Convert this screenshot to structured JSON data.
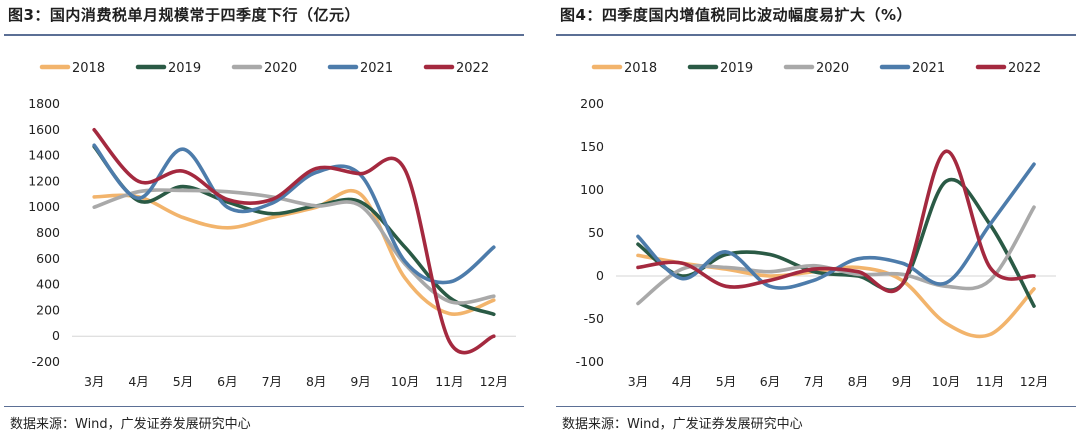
{
  "colors": {
    "2018": "#f2b46c",
    "2019": "#2a5a45",
    "2020": "#a9a9a9",
    "2021": "#4d7cab",
    "2022": "#a4293f",
    "rule": "#5b6f95"
  },
  "source_left": "数据来源：Wind，广发证券发展研究中心",
  "source_right": "数据来源：Wind，广发证券发展研究中心",
  "chart_data": [
    {
      "type": "line",
      "title": "图3：国内消费税单月规模常于四季度下行（亿元）",
      "categories": [
        "3月",
        "4月",
        "5月",
        "6月",
        "7月",
        "8月",
        "9月",
        "10月",
        "11月",
        "12月"
      ],
      "ylim": [
        -200,
        1800
      ],
      "yticks": [
        -200,
        0,
        200,
        400,
        600,
        800,
        1000,
        1200,
        1400,
        1600,
        1800
      ],
      "series": [
        {
          "name": "2018",
          "values": [
            1080,
            1080,
            920,
            840,
            920,
            1000,
            1100,
            450,
            175,
            280
          ]
        },
        {
          "name": "2019",
          "values": [
            1470,
            1050,
            1160,
            1040,
            950,
            1010,
            1040,
            690,
            300,
            170
          ]
        },
        {
          "name": "2020",
          "values": [
            1000,
            1120,
            1130,
            1120,
            1080,
            1010,
            1010,
            560,
            270,
            310
          ]
        },
        {
          "name": "2021",
          "values": [
            1480,
            1070,
            1450,
            1000,
            1030,
            1270,
            1250,
            580,
            420,
            690
          ]
        },
        {
          "name": "2022",
          "values": [
            1600,
            1200,
            1280,
            1060,
            1060,
            1300,
            1260,
            1290,
            -40,
            0
          ]
        }
      ]
    },
    {
      "type": "line",
      "title": "图4：四季度国内增值税同比波动幅度易扩大（%）",
      "categories": [
        "3月",
        "4月",
        "5月",
        "6月",
        "7月",
        "8月",
        "9月",
        "10月",
        "11月",
        "12月"
      ],
      "ylim": [
        -100,
        200
      ],
      "yticks": [
        -100,
        -50,
        0,
        50,
        100,
        150,
        200
      ],
      "series": [
        {
          "name": "2018",
          "values": [
            24,
            15,
            8,
            0,
            5,
            10,
            -5,
            -55,
            -68,
            -15
          ]
        },
        {
          "name": "2019",
          "values": [
            37,
            0,
            25,
            25,
            5,
            0,
            -10,
            110,
            60,
            -35
          ]
        },
        {
          "name": "2020",
          "values": [
            -32,
            8,
            10,
            5,
            12,
            2,
            2,
            -12,
            -5,
            80
          ]
        },
        {
          "name": "2021",
          "values": [
            46,
            -3,
            28,
            -12,
            -5,
            20,
            15,
            -8,
            60,
            130
          ]
        },
        {
          "name": "2022",
          "values": [
            10,
            15,
            -12,
            -5,
            8,
            5,
            -10,
            145,
            10,
            0
          ]
        }
      ]
    }
  ]
}
